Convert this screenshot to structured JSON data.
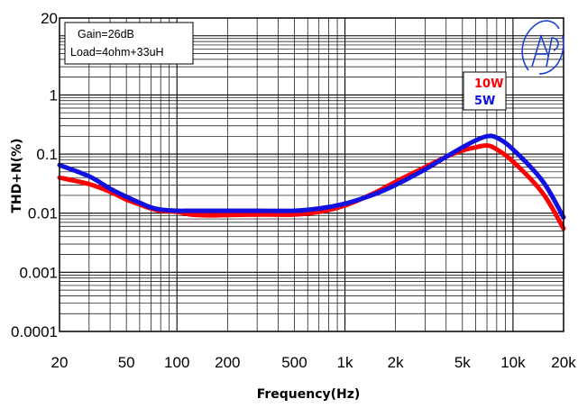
{
  "chart_data": {
    "type": "line",
    "xlabel": "Frequency(Hz)",
    "ylabel": "THD+N(%)",
    "x_scale": "log",
    "y_scale": "log",
    "xlim": [
      20,
      20000
    ],
    "ylim": [
      0.0001,
      20
    ],
    "x_ticks": [
      {
        "v": 20,
        "label": "20"
      },
      {
        "v": 50,
        "label": "50"
      },
      {
        "v": 100,
        "label": "100"
      },
      {
        "v": 200,
        "label": "200"
      },
      {
        "v": 500,
        "label": "500"
      },
      {
        "v": 1000,
        "label": "1k"
      },
      {
        "v": 2000,
        "label": "2k"
      },
      {
        "v": 5000,
        "label": "5k"
      },
      {
        "v": 10000,
        "label": "10k"
      },
      {
        "v": 20000,
        "label": "20k"
      }
    ],
    "y_ticks": [
      {
        "v": 20,
        "label": "20"
      },
      {
        "v": 1,
        "label": "1"
      },
      {
        "v": 0.1,
        "label": "0.1"
      },
      {
        "v": 0.01,
        "label": "0.01"
      },
      {
        "v": 0.001,
        "label": "0.001"
      },
      {
        "v": 0.0001,
        "label": "0.0001"
      }
    ],
    "grid": true,
    "annotations": [
      "Gain=26dB",
      "Load=4ohm+33uH"
    ],
    "legend_position": "top-right",
    "series": [
      {
        "name": "10W",
        "color": "#ff0000",
        "x": [
          20,
          30,
          40,
          50,
          60,
          70,
          80,
          100,
          120,
          150,
          200,
          300,
          500,
          700,
          1000,
          1500,
          2000,
          3000,
          4000,
          5000,
          6000,
          7000,
          8000,
          10000,
          15000,
          20000
        ],
        "y": [
          0.04,
          0.031,
          0.023,
          0.017,
          0.014,
          0.012,
          0.011,
          0.0105,
          0.0095,
          0.0092,
          0.0093,
          0.0095,
          0.0095,
          0.0105,
          0.0135,
          0.022,
          0.034,
          0.06,
          0.09,
          0.115,
          0.13,
          0.14,
          0.12,
          0.075,
          0.022,
          0.0055
        ]
      },
      {
        "name": "5W",
        "color": "#1010e0",
        "x": [
          20,
          30,
          40,
          50,
          60,
          70,
          80,
          100,
          120,
          150,
          200,
          300,
          500,
          700,
          1000,
          1500,
          2000,
          3000,
          4000,
          5000,
          6000,
          7000,
          8000,
          10000,
          15000,
          20000
        ],
        "y": [
          0.065,
          0.042,
          0.026,
          0.019,
          0.015,
          0.0125,
          0.0115,
          0.011,
          0.011,
          0.011,
          0.011,
          0.011,
          0.011,
          0.012,
          0.0145,
          0.021,
          0.03,
          0.055,
          0.09,
          0.13,
          0.17,
          0.2,
          0.19,
          0.12,
          0.035,
          0.0085
        ]
      }
    ]
  }
}
